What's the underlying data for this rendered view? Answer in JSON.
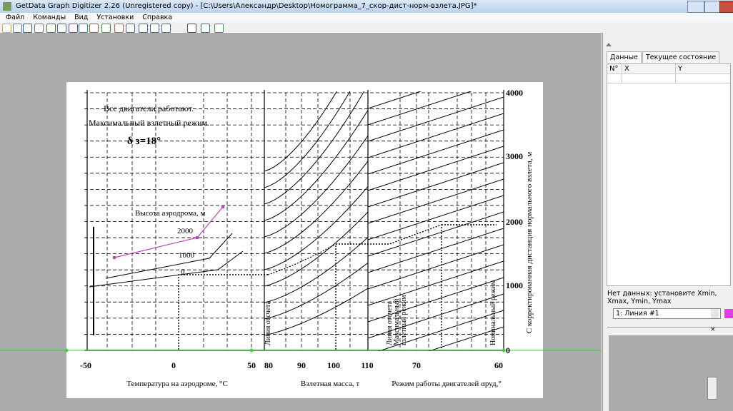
{
  "window": {
    "title": "GetData Graph Digitizer 2.26 (Unregistered copy) - [C:\\Users\\Александр\\Desktop\\Номограмма_7_скор-дист-норм-взлета.JPG]*",
    "menu": [
      "Файл",
      "Команды",
      "Вид",
      "Установки",
      "Справка"
    ]
  },
  "nomogram": {
    "notes": [
      "Все двигатели работают.",
      "Максимальный взлетный режим."
    ],
    "delta": "δ з=18°",
    "height_label": "Высота аэродрома, м",
    "height_ticks": [
      "2000",
      "1000",
      "0"
    ],
    "y_ticks": [
      "4000",
      "3000",
      "2000",
      "1000",
      "0"
    ],
    "y_label": "С корректированная дистанция нормального взлета, м",
    "x_ticks": [
      "-50",
      "0",
      "50",
      "80",
      "90",
      "100",
      "110",
      "70",
      "60"
    ],
    "x_labels": [
      "Температура на аэродроме, °С",
      "Взлетная масса, т",
      "Режим работы двигателей αруд,°"
    ],
    "ref_lines": [
      "Линия отсчета",
      "Линия отсчета",
      "Максимальный",
      "взлетный режим",
      "Номинальный режим"
    ]
  },
  "panel": {
    "tabs": [
      "Данные",
      "Текущее состояние"
    ],
    "columns": [
      "N°",
      "X",
      "Y"
    ],
    "message": "Нет данных: установите Xmin, Xmax, Ymin, Ymax",
    "line_select": "1: Линия #1",
    "close": "×"
  }
}
